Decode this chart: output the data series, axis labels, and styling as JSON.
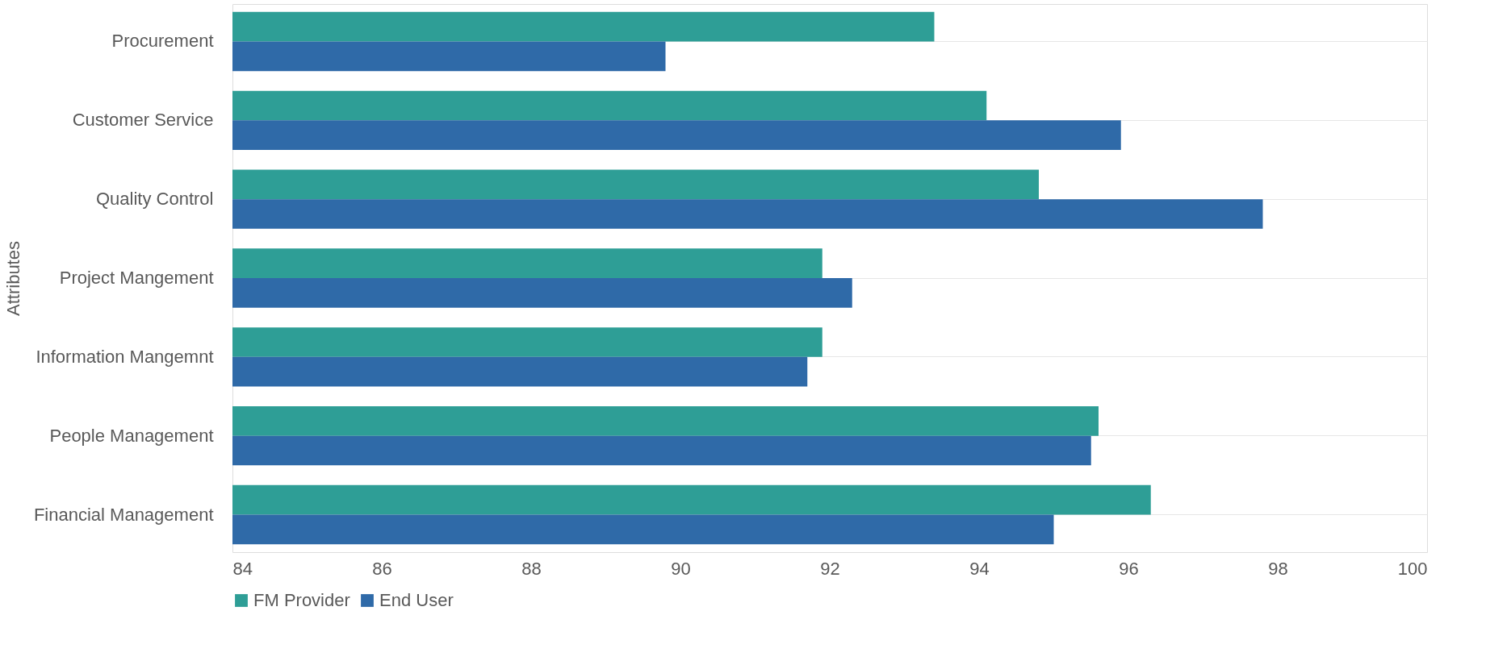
{
  "chart_data": {
    "type": "bar",
    "orientation": "horizontal",
    "ylabel": "Attributes",
    "categories": [
      "Procurement",
      "Customer Service",
      "Quality Control",
      "Project Mangement",
      "Information Mangemnt",
      "People Management",
      "Financial Management"
    ],
    "series": [
      {
        "name": "FM Provider",
        "color": "#2e9e96",
        "values": [
          93.4,
          94.1,
          94.8,
          91.9,
          91.9,
          95.6,
          96.3
        ]
      },
      {
        "name": "End User",
        "color": "#2f6aa8",
        "values": [
          89.8,
          95.9,
          97.8,
          92.3,
          91.7,
          95.5,
          95.0
        ]
      }
    ],
    "xlim": [
      84,
      100
    ],
    "xticks": [
      84,
      86,
      88,
      90,
      92,
      94,
      96,
      98,
      100
    ],
    "grid": "y",
    "legend": "bottom"
  }
}
